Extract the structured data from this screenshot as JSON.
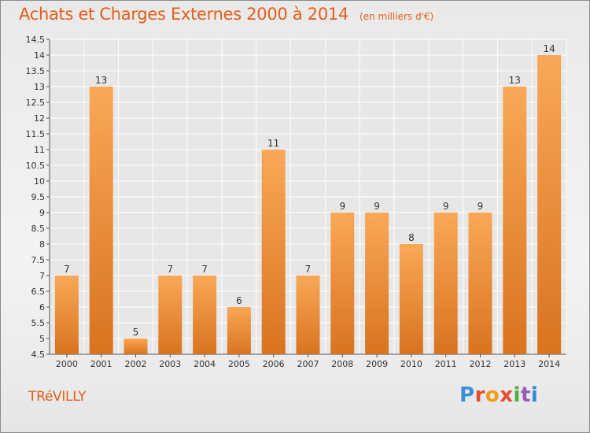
{
  "header": {
    "title": "Achats et Charges Externes 2000 à 2014",
    "unit": "(en milliers d'€)"
  },
  "footer": {
    "town": "TRéVILLY",
    "logo": "Proxiti"
  },
  "colors": {
    "accent": "#e55d1a",
    "bar_top": "#f9a857",
    "bar_bottom": "#d9731f",
    "grid": "#ffffff",
    "logo_letters": [
      "#3b8fd6",
      "#e54b2d",
      "#f39c1a",
      "#e54b2d",
      "#4cae3b",
      "#9b59b6",
      "#2e8ad8"
    ]
  },
  "chart_data": {
    "type": "bar",
    "title": "Achats et Charges Externes 2000 à 2014",
    "subtitle": "(en milliers d'€)",
    "categories": [
      "2000",
      "2001",
      "2002",
      "2003",
      "2004",
      "2005",
      "2006",
      "2007",
      "2008",
      "2009",
      "2010",
      "2011",
      "2012",
      "2013",
      "2014"
    ],
    "values": [
      7,
      13,
      5,
      7,
      7,
      6,
      11,
      7,
      9,
      9,
      8,
      9,
      9,
      13,
      14
    ],
    "data_labels": [
      "7",
      "13",
      "5",
      "7",
      "7",
      "6",
      "11",
      "7",
      "9",
      "9",
      "8",
      "9",
      "9",
      "13",
      "14"
    ],
    "ylim": [
      4.5,
      14.5
    ],
    "yticks": [
      "4.5",
      "5",
      "5.5",
      "6",
      "6.5",
      "7",
      "7.5",
      "8",
      "8.5",
      "9",
      "9.5",
      "10",
      "10.5",
      "11",
      "11.5",
      "12",
      "12.5",
      "13",
      "13.5",
      "14",
      "14.5"
    ],
    "grid": true,
    "xlabel": "",
    "ylabel": ""
  }
}
